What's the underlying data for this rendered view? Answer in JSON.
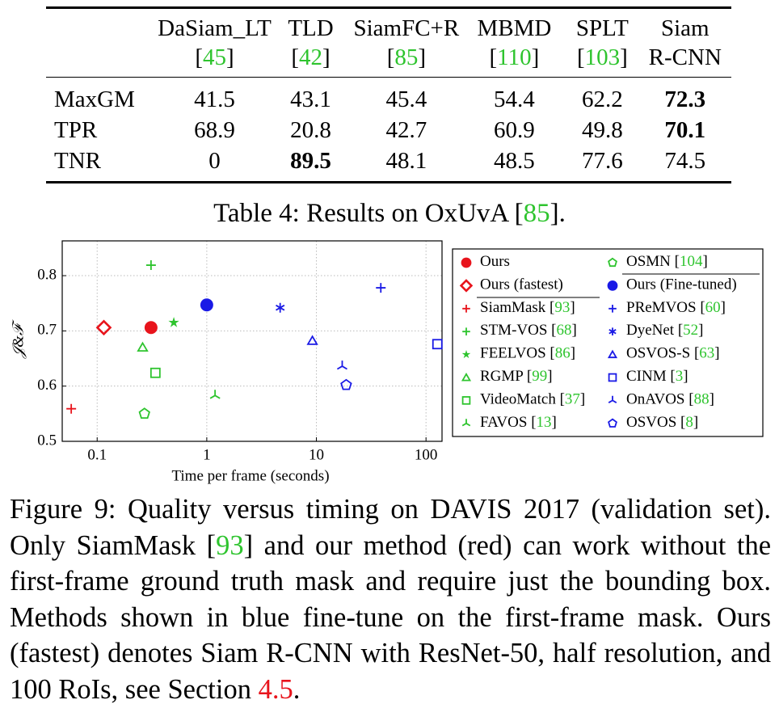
{
  "table": {
    "header": [
      {
        "lines": [
          [
            {
              "text": "DaSiam_LT"
            }
          ],
          [
            {
              "text": "["
            },
            {
              "text": "45",
              "color": "#2ec42e"
            },
            {
              "text": "]"
            }
          ]
        ]
      },
      {
        "lines": [
          [
            {
              "text": "TLD"
            }
          ],
          [
            {
              "text": "["
            },
            {
              "text": "42",
              "color": "#2ec42e"
            },
            {
              "text": "]"
            }
          ]
        ]
      },
      {
        "lines": [
          [
            {
              "text": "SiamFC+R"
            }
          ],
          [
            {
              "text": "["
            },
            {
              "text": "85",
              "color": "#2ec42e"
            },
            {
              "text": "]"
            }
          ]
        ]
      },
      {
        "lines": [
          [
            {
              "text": "MBMD"
            }
          ],
          [
            {
              "text": "["
            },
            {
              "text": "110",
              "color": "#2ec42e"
            },
            {
              "text": "]"
            }
          ]
        ]
      },
      {
        "lines": [
          [
            {
              "text": "SPLT"
            }
          ],
          [
            {
              "text": "["
            },
            {
              "text": "103",
              "color": "#2ec42e"
            },
            {
              "text": "]"
            }
          ]
        ]
      },
      {
        "lines": [
          [
            {
              "text": "Siam"
            }
          ],
          [
            {
              "text": "R-CNN"
            }
          ]
        ]
      }
    ],
    "rows": [
      {
        "label": "MaxGM",
        "cells": [
          {
            "text": "41.5"
          },
          {
            "text": "43.1"
          },
          {
            "text": "45.4"
          },
          {
            "text": "54.4"
          },
          {
            "text": "62.2"
          },
          {
            "text": "72.3",
            "bold": true
          }
        ]
      },
      {
        "label": "TPR",
        "cells": [
          {
            "text": "68.9"
          },
          {
            "text": "20.8"
          },
          {
            "text": "42.7"
          },
          {
            "text": "60.9"
          },
          {
            "text": "49.8"
          },
          {
            "text": "70.1",
            "bold": true
          }
        ]
      },
      {
        "label": "TNR",
        "cells": [
          {
            "text": "0"
          },
          {
            "text": "89.5",
            "bold": true
          },
          {
            "text": "48.1"
          },
          {
            "text": "48.5"
          },
          {
            "text": "77.6"
          },
          {
            "text": "74.5"
          }
        ]
      }
    ]
  },
  "table_caption": [
    {
      "text": "Table 4: Results on OxUvA ["
    },
    {
      "text": "85",
      "color": "#2ec42e"
    },
    {
      "text": "]."
    }
  ],
  "chart_data": {
    "type": "scatter",
    "xlabel": "Time per frame (seconds)",
    "ylabel": "𝒥&ℱ",
    "xscale": "log",
    "xlim": [
      0.048,
      140
    ],
    "ylim": [
      0.5,
      0.863
    ],
    "xticks": [
      0.1,
      1,
      10,
      100
    ],
    "yticks": [
      0.5,
      0.6,
      0.7,
      0.8
    ],
    "grid": true,
    "legend": "outside-right",
    "series": [
      {
        "name": [
          {
            "text": "Ours"
          }
        ],
        "color": "#e8141c",
        "marker": "circle",
        "x": [
          0.31
        ],
        "y": [
          0.706
        ]
      },
      {
        "name": [
          {
            "text": "Ours (fastest)"
          }
        ],
        "color": "#e8141c",
        "marker": "diamond",
        "x": [
          0.115
        ],
        "y": [
          0.706
        ]
      },
      {
        "name": [
          {
            "text": "SiamMask ["
          },
          {
            "text": "93",
            "color": "#2ec42e"
          },
          {
            "text": "]"
          }
        ],
        "color": "#e8141c",
        "marker": "plus",
        "x": [
          0.058
        ],
        "y": [
          0.559
        ]
      },
      {
        "name": [
          {
            "text": "STM-VOS ["
          },
          {
            "text": "68",
            "color": "#2ec42e"
          },
          {
            "text": "]"
          }
        ],
        "color": "#2ec42e",
        "marker": "plus",
        "x": [
          0.31
        ],
        "y": [
          0.819
        ]
      },
      {
        "name": [
          {
            "text": "FEELVOS ["
          },
          {
            "text": "86",
            "color": "#2ec42e"
          },
          {
            "text": "]"
          }
        ],
        "color": "#2ec42e",
        "marker": "star",
        "x": [
          0.5
        ],
        "y": [
          0.715
        ]
      },
      {
        "name": [
          {
            "text": "RGMP ["
          },
          {
            "text": "99",
            "color": "#2ec42e"
          },
          {
            "text": "]"
          }
        ],
        "color": "#2ec42e",
        "marker": "triangle",
        "x": [
          0.26
        ],
        "y": [
          0.67
        ]
      },
      {
        "name": [
          {
            "text": "VideoMatch ["
          },
          {
            "text": "37",
            "color": "#2ec42e"
          },
          {
            "text": "]"
          }
        ],
        "color": "#2ec42e",
        "marker": "square",
        "x": [
          0.34
        ],
        "y": [
          0.624
        ]
      },
      {
        "name": [
          {
            "text": "FAVOS ["
          },
          {
            "text": "13",
            "color": "#2ec42e"
          },
          {
            "text": "]"
          }
        ],
        "color": "#2ec42e",
        "marker": "tri",
        "x": [
          1.19
        ],
        "y": [
          0.583
        ]
      },
      {
        "name": [
          {
            "text": "OSMN ["
          },
          {
            "text": "104",
            "color": "#2ec42e"
          },
          {
            "text": "]"
          }
        ],
        "color": "#2ec42e",
        "marker": "pentagon",
        "x": [
          0.27
        ],
        "y": [
          0.55
        ]
      },
      {
        "name": [
          {
            "text": "Ours (Fine-tuned)"
          }
        ],
        "color": "#1a1ae6",
        "marker": "circle",
        "x": [
          1.0
        ],
        "y": [
          0.747
        ]
      },
      {
        "name": [
          {
            "text": "PReMVOS ["
          },
          {
            "text": "60",
            "color": "#2ec42e"
          },
          {
            "text": "]"
          }
        ],
        "color": "#1a1ae6",
        "marker": "plus",
        "x": [
          38.7
        ],
        "y": [
          0.778
        ]
      },
      {
        "name": [
          {
            "text": "DyeNet ["
          },
          {
            "text": "52",
            "color": "#2ec42e"
          },
          {
            "text": "]"
          }
        ],
        "color": "#1a1ae6",
        "marker": "asterisk",
        "x": [
          4.67
        ],
        "y": [
          0.742
        ]
      },
      {
        "name": [
          {
            "text": "OSVOS-S ["
          },
          {
            "text": "63",
            "color": "#2ec42e"
          },
          {
            "text": "]"
          }
        ],
        "color": "#1a1ae6",
        "marker": "triangle",
        "x": [
          9.2
        ],
        "y": [
          0.682
        ]
      },
      {
        "name": [
          {
            "text": "CINM ["
          },
          {
            "text": "3",
            "color": "#2ec42e"
          },
          {
            "text": "]"
          }
        ],
        "color": "#1a1ae6",
        "marker": "square",
        "x": [
          127
        ],
        "y": [
          0.676
        ]
      },
      {
        "name": [
          {
            "text": "OnAVOS ["
          },
          {
            "text": "88",
            "color": "#2ec42e"
          },
          {
            "text": "]"
          }
        ],
        "color": "#1a1ae6",
        "marker": "tri",
        "x": [
          17.2
        ],
        "y": [
          0.636
        ]
      },
      {
        "name": [
          {
            "text": "OSVOS ["
          },
          {
            "text": "8",
            "color": "#2ec42e"
          },
          {
            "text": "]"
          }
        ],
        "color": "#1a1ae6",
        "marker": "pentagon",
        "x": [
          18.7
        ],
        "y": [
          0.602
        ]
      }
    ]
  },
  "figure_caption": [
    {
      "text": "Figure 9: Quality versus timing on DAVIS 2017 (validation set). Only SiamMask ["
    },
    {
      "text": "93",
      "color": "#2ec42e"
    },
    {
      "text": "] and our method (red) can work without the first-frame ground truth mask and require just the bounding box. Methods shown in blue fine-tune on the first-frame mask. Ours (fastest) denotes Siam R-CNN with ResNet-50, half resolution, and 100 RoIs, see Section "
    },
    {
      "text": "4.5",
      "color": "#e8141c"
    },
    {
      "text": "."
    }
  ]
}
